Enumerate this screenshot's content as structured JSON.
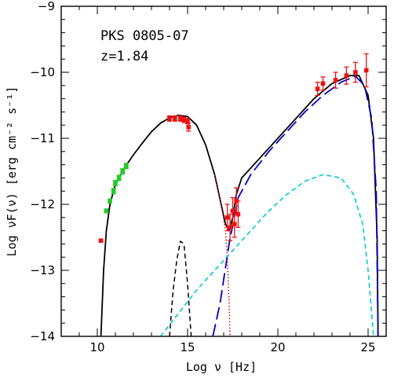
{
  "chart_data": {
    "type": "scatter",
    "annotations": [
      "PKS 0805-07",
      "z=1.84"
    ],
    "xlabel": "Log ν [Hz]",
    "ylabel": "Log νF(ν) [erg cm⁻² s⁻¹]",
    "xlim": [
      8,
      26
    ],
    "ylim": [
      -14,
      -9
    ],
    "x_ticks": [
      10,
      15,
      20,
      25
    ],
    "y_ticks": [
      -14,
      -13,
      -12,
      -11,
      -10,
      -9
    ],
    "x_tick_labels": [
      "10",
      "15",
      "20",
      "25"
    ],
    "y_tick_labels": [
      "−14",
      "−13",
      "−12",
      "−11",
      "−10",
      "−9"
    ],
    "grid": false,
    "colors": {
      "total_model": "#000000",
      "disk": "#000000",
      "synchrotron_cutoff": "#d00000",
      "external_compton": "#0000cc",
      "ssc": "#00cccc",
      "green_points": "#22cc22",
      "red_points": "#ee1111"
    },
    "series": [
      {
        "style": "points-green",
        "points": [
          {
            "x": 10.5,
            "y": -12.1,
            "err": 0.03
          },
          {
            "x": 10.7,
            "y": -11.95,
            "err": 0.03
          },
          {
            "x": 10.9,
            "y": -11.8,
            "err": 0.04
          },
          {
            "x": 11.0,
            "y": -11.68,
            "err": 0.04
          },
          {
            "x": 11.2,
            "y": -11.6,
            "err": 0.04
          },
          {
            "x": 11.4,
            "y": -11.5,
            "err": 0.04
          },
          {
            "x": 11.6,
            "y": -11.42,
            "err": 0.04
          }
        ]
      },
      {
        "style": "points-red",
        "points": [
          {
            "x": 10.2,
            "y": -12.55,
            "err": 0.02
          },
          {
            "x": 14.0,
            "y": -10.7,
            "err": 0.04
          },
          {
            "x": 14.3,
            "y": -10.7,
            "err": 0.04
          },
          {
            "x": 14.6,
            "y": -10.7,
            "err": 0.04
          },
          {
            "x": 14.8,
            "y": -10.72,
            "err": 0.04
          },
          {
            "x": 15.0,
            "y": -10.74,
            "err": 0.04
          },
          {
            "x": 15.05,
            "y": -10.83,
            "err": 0.06
          },
          {
            "x": 17.2,
            "y": -12.2,
            "err": 0.2
          },
          {
            "x": 17.35,
            "y": -12.35,
            "err": 0.2
          },
          {
            "x": 17.5,
            "y": -12.1,
            "err": 0.2
          },
          {
            "x": 17.6,
            "y": -12.3,
            "err": 0.2
          },
          {
            "x": 17.7,
            "y": -11.95,
            "err": 0.2
          },
          {
            "x": 17.8,
            "y": -12.15,
            "err": 0.2
          },
          {
            "x": 22.2,
            "y": -10.25,
            "err": 0.1
          },
          {
            "x": 22.5,
            "y": -10.17,
            "err": 0.1
          },
          {
            "x": 23.2,
            "y": -10.12,
            "err": 0.12
          },
          {
            "x": 23.8,
            "y": -10.05,
            "err": 0.13
          },
          {
            "x": 24.3,
            "y": -10.0,
            "err": 0.15
          },
          {
            "x": 24.9,
            "y": -9.97,
            "err": 0.25
          }
        ]
      },
      {
        "style": "solid-black",
        "points": [
          [
            10.2,
            -14.0
          ],
          [
            10.35,
            -13.0
          ],
          [
            10.5,
            -12.4
          ],
          [
            10.7,
            -12.0
          ],
          [
            11.0,
            -11.7
          ],
          [
            11.5,
            -11.45
          ],
          [
            12.0,
            -11.25
          ],
          [
            12.5,
            -11.07
          ],
          [
            13.0,
            -10.9
          ],
          [
            13.5,
            -10.77
          ],
          [
            14.0,
            -10.69
          ],
          [
            14.5,
            -10.65
          ],
          [
            15.0,
            -10.67
          ],
          [
            15.5,
            -10.8
          ],
          [
            16.0,
            -11.1
          ],
          [
            16.5,
            -11.55
          ],
          [
            16.9,
            -12.05
          ],
          [
            17.1,
            -12.3
          ],
          [
            17.3,
            -12.4
          ],
          [
            17.5,
            -12.2
          ],
          [
            17.7,
            -11.85
          ],
          [
            18.0,
            -11.6
          ],
          [
            18.5,
            -11.45
          ],
          [
            19.0,
            -11.3
          ],
          [
            20.0,
            -11.0
          ],
          [
            21.0,
            -10.7
          ],
          [
            22.0,
            -10.4
          ],
          [
            23.0,
            -10.17
          ],
          [
            24.0,
            -10.05
          ],
          [
            24.5,
            -10.05
          ],
          [
            25.0,
            -10.35
          ],
          [
            25.3,
            -11.0
          ],
          [
            25.5,
            -12.5
          ],
          [
            25.55,
            -14.0
          ]
        ]
      },
      {
        "style": "dashed-black",
        "points": [
          [
            14.0,
            -14.0
          ],
          [
            14.2,
            -13.3
          ],
          [
            14.4,
            -12.85
          ],
          [
            14.6,
            -12.56
          ],
          [
            14.8,
            -12.6
          ],
          [
            15.0,
            -13.2
          ],
          [
            15.2,
            -14.0
          ]
        ]
      },
      {
        "style": "dotted-red",
        "points": [
          [
            16.5,
            -11.55
          ],
          [
            16.9,
            -12.05
          ],
          [
            17.1,
            -12.4
          ],
          [
            17.2,
            -12.8
          ],
          [
            17.3,
            -13.5
          ],
          [
            17.35,
            -14.0
          ]
        ]
      },
      {
        "style": "long-dashed-blue",
        "points": [
          [
            16.4,
            -14.0
          ],
          [
            16.8,
            -13.5
          ],
          [
            17.3,
            -12.6
          ],
          [
            17.8,
            -11.9
          ],
          [
            18.5,
            -11.55
          ],
          [
            19.5,
            -11.2
          ],
          [
            20.5,
            -10.9
          ],
          [
            21.5,
            -10.6
          ],
          [
            22.5,
            -10.35
          ],
          [
            23.5,
            -10.15
          ],
          [
            24.3,
            -10.06
          ],
          [
            24.8,
            -10.2
          ],
          [
            25.2,
            -10.7
          ],
          [
            25.45,
            -11.8
          ],
          [
            25.55,
            -14.0
          ]
        ]
      },
      {
        "style": "dashed-cyan",
        "points": [
          [
            13.5,
            -14.0
          ],
          [
            14.5,
            -13.65
          ],
          [
            15.5,
            -13.3
          ],
          [
            16.5,
            -13.0
          ],
          [
            17.5,
            -12.7
          ],
          [
            18.5,
            -12.4
          ],
          [
            19.5,
            -12.1
          ],
          [
            20.5,
            -11.85
          ],
          [
            21.5,
            -11.65
          ],
          [
            22.5,
            -11.55
          ],
          [
            23.5,
            -11.6
          ],
          [
            24.2,
            -11.85
          ],
          [
            24.7,
            -12.3
          ],
          [
            25.0,
            -13.0
          ],
          [
            25.3,
            -14.0
          ]
        ]
      }
    ]
  }
}
